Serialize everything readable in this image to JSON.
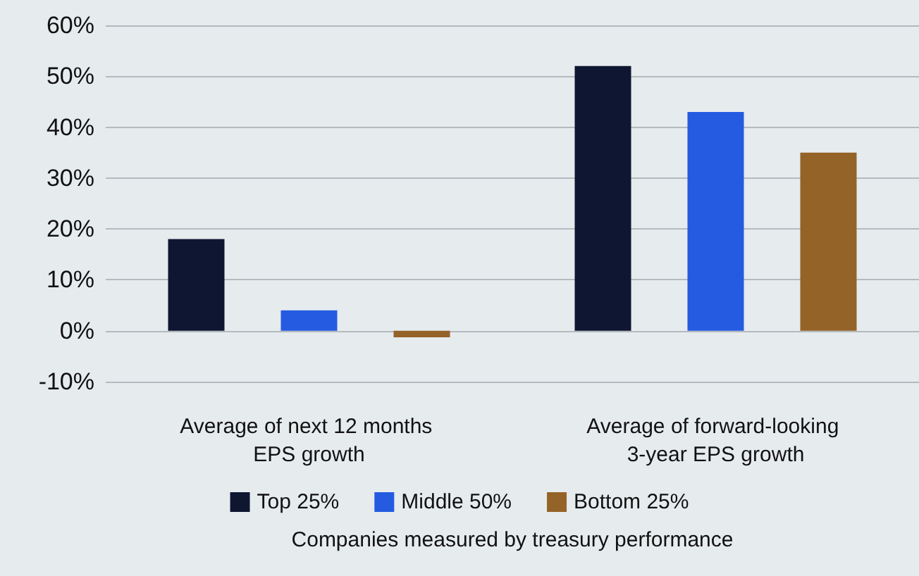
{
  "chart_data": {
    "type": "bar",
    "xlabel": "Companies measured by treasury performance",
    "categories": [
      "Average of next 12 months EPS growth",
      "Average of forward-looking 3-year EPS growth"
    ],
    "series": [
      {
        "name": "Top 25%",
        "color": "#0f1631",
        "values": [
          18,
          52
        ]
      },
      {
        "name": "Middle 50%",
        "color": "#245be0",
        "values": [
          4,
          43
        ]
      },
      {
        "name": "Bottom 25%",
        "color": "#946327",
        "values": [
          -1.3,
          35
        ]
      }
    ],
    "ylim": [
      -10,
      60
    ],
    "yticks": [
      {
        "value": -10,
        "label": "-10%"
      },
      {
        "value": 0,
        "label": "0%"
      },
      {
        "value": 10,
        "label": "10%"
      },
      {
        "value": 20,
        "label": "20%"
      },
      {
        "value": 30,
        "label": "30%"
      },
      {
        "value": 40,
        "label": "40%"
      },
      {
        "value": 50,
        "label": "50%"
      },
      {
        "value": 60,
        "label": "60%"
      }
    ],
    "grid": "y",
    "legend": "bottom"
  }
}
